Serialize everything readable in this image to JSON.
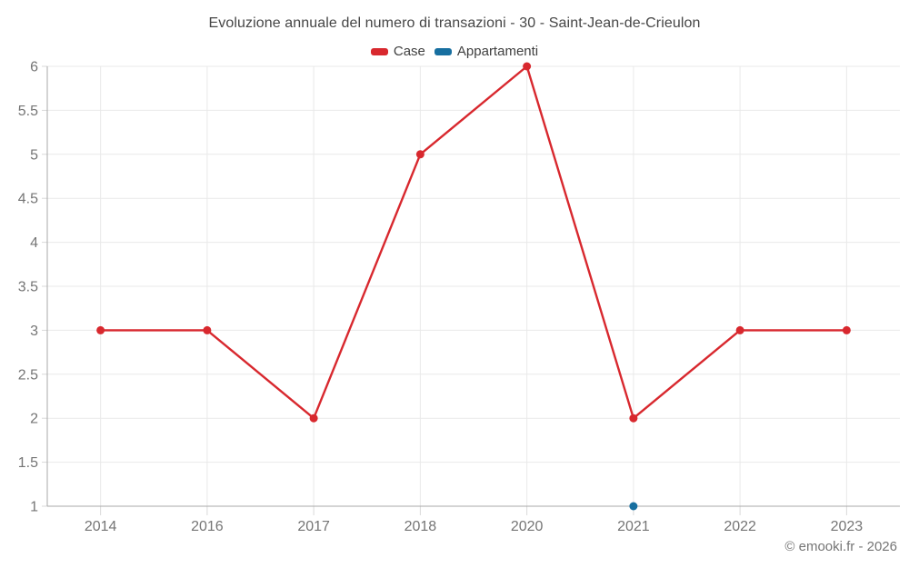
{
  "watermark": "© emooki.fr - 2026",
  "chart_data": {
    "type": "line",
    "title": "Evoluzione annuale del numero di transazioni - 30 - Saint-Jean-de-Crieulon",
    "xlabel": "",
    "ylabel": "",
    "categories": [
      "2014",
      "2016",
      "2017",
      "2018",
      "2020",
      "2021",
      "2022",
      "2023"
    ],
    "series": [
      {
        "name": "Case",
        "color": "#d8282e",
        "values": [
          3,
          3,
          2,
          5,
          6,
          2,
          3,
          3
        ]
      },
      {
        "name": "Appartamenti",
        "color": "#176fa0",
        "values": [
          null,
          null,
          null,
          null,
          null,
          1,
          null,
          null
        ]
      }
    ],
    "ylim": [
      1,
      6
    ],
    "y_ticks": [
      1,
      1.5,
      2,
      2.5,
      3,
      3.5,
      4,
      4.5,
      5,
      5.5,
      6
    ],
    "grid": true,
    "legend_position": "top",
    "colors": {
      "background": "#ffffff",
      "grid_line": "#e9e9e9",
      "axis_line": "#aaaaaa",
      "tick_line": "#d9d9d9",
      "axis_label": "#757575",
      "title_text": "#464646",
      "legend_text": "#404040",
      "watermark_text": "#757575"
    }
  }
}
